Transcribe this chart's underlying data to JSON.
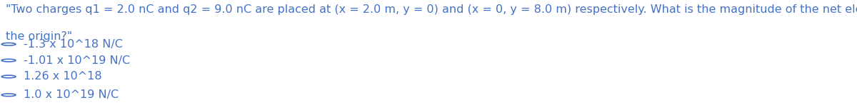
{
  "question_line1": "\"Two charges q1 = 2.0 nC and q2 = 9.0 nC are placed at (x = 2.0 m, y = 0) and (x = 0, y = 8.0 m) respectively. What is the magnitude of the net electric field at",
  "question_line2": "the origin?\"",
  "options": [
    "-1.3 x 10^18 N/C",
    "-1.01 x 10^19 N/C",
    "1.26 x 10^18",
    "1.0 x 10^19 N/C"
  ],
  "text_color": "#4472c4",
  "background_color": "#ffffff",
  "font_size": 11.5,
  "fig_width": 12.0,
  "fig_height": 1.55
}
